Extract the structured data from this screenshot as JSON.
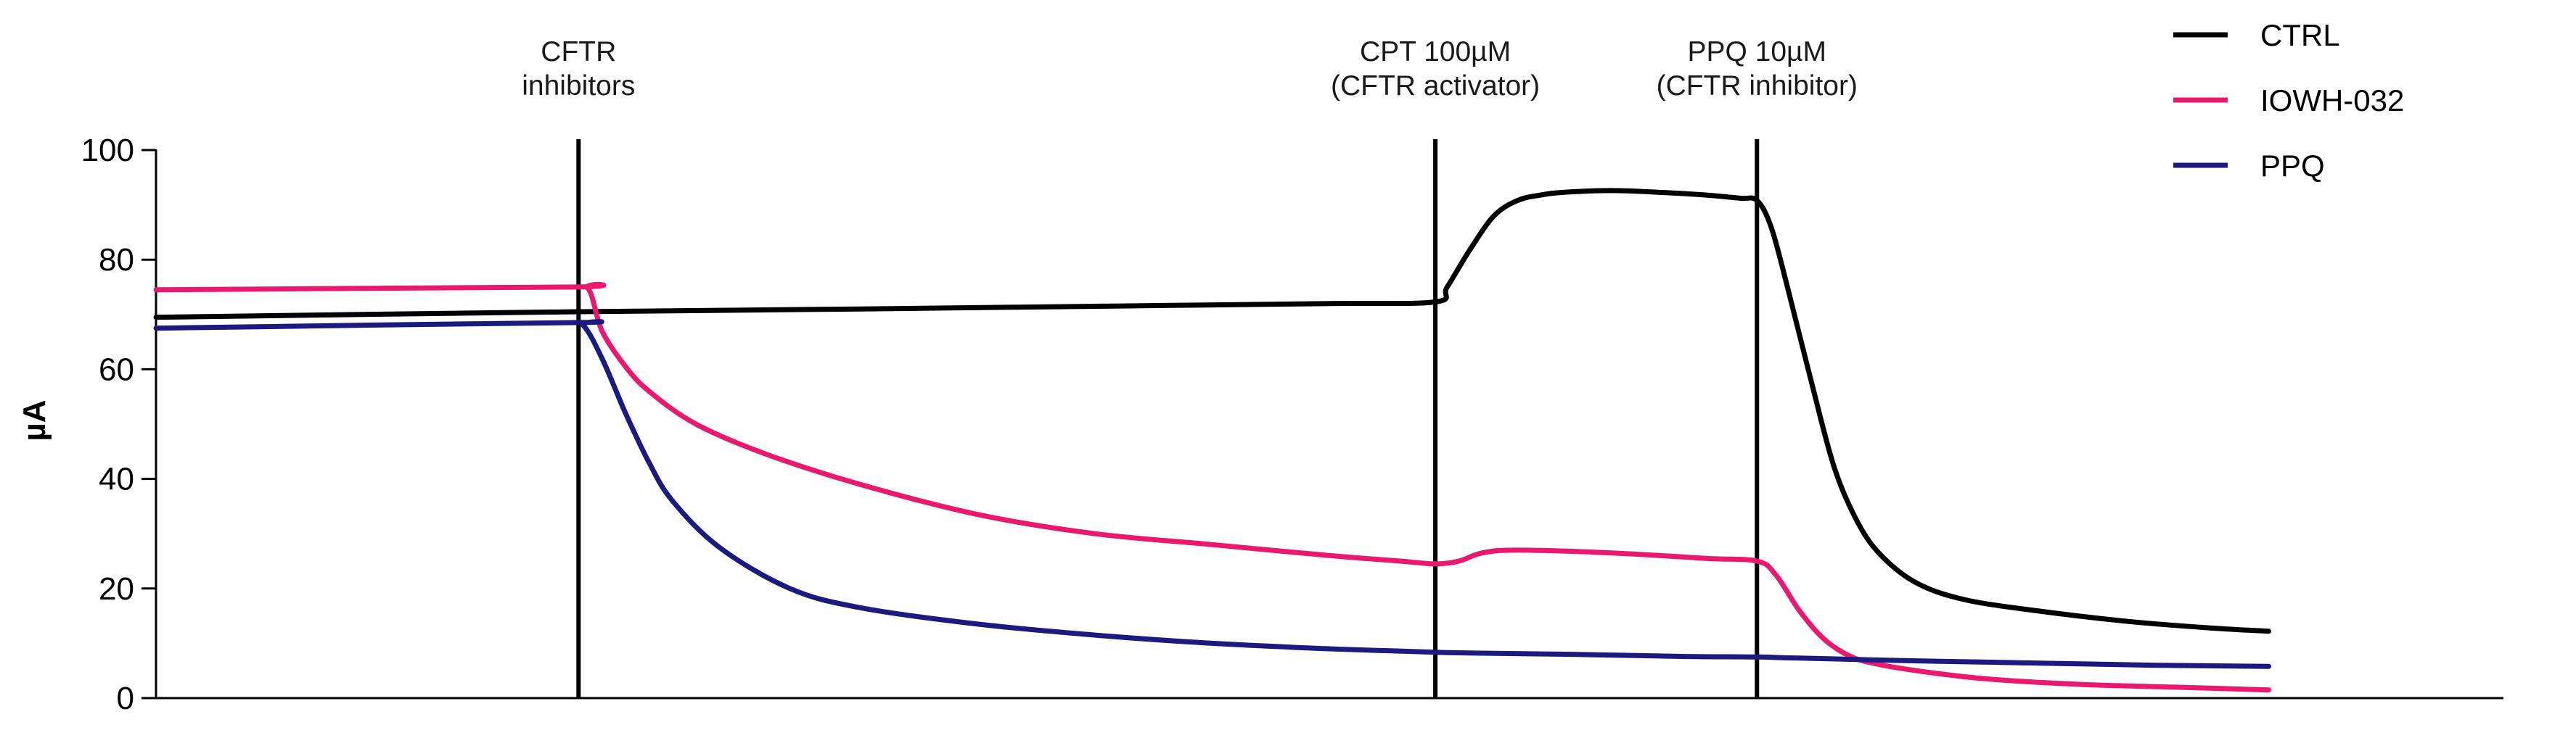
{
  "chart_data": {
    "type": "line",
    "title": "",
    "xlabel": "",
    "ylabel": "µA",
    "ylim": [
      0,
      100
    ],
    "yticks": [
      0,
      20,
      40,
      60,
      80,
      100
    ],
    "xlim": [
      0,
      100
    ],
    "grid": false,
    "legend_position": "top-right",
    "events": [
      {
        "x": 18.0,
        "label_lines": [
          "CFTR",
          "inhibitors"
        ]
      },
      {
        "x": 54.5,
        "label_lines": [
          "CPT 100µM",
          "(CFTR activator)"
        ]
      },
      {
        "x": 68.2,
        "label_lines": [
          "PPQ 10µM",
          "(CFTR inhibitor)"
        ]
      }
    ],
    "series": [
      {
        "name": "CTRL",
        "color": "#000000",
        "x": [
          0,
          18,
          30,
          40,
          50,
          54.5,
          55,
          56,
          57,
          58,
          59,
          60,
          62,
          64,
          66,
          67.5,
          68.2,
          68.8,
          69.5,
          70.5,
          71.5,
          72.5,
          73.5,
          75,
          77,
          80,
          84,
          87.5,
          90
        ],
        "y": [
          69.5,
          70.5,
          71.0,
          71.5,
          72.0,
          72.3,
          75.0,
          82.0,
          88.0,
          90.8,
          91.8,
          92.3,
          92.6,
          92.3,
          91.8,
          91.2,
          90.8,
          86.0,
          75.0,
          58.0,
          42.0,
          32.0,
          26.0,
          21.0,
          18.0,
          16.0,
          14.0,
          12.8,
          12.2
        ]
      },
      {
        "name": "IOWH-032",
        "color": "#e8196e",
        "x": [
          0,
          17.5,
          18.4,
          19,
          20,
          21,
          23,
          26,
          30,
          35,
          40,
          45,
          50,
          53,
          54.5,
          55.5,
          56.5,
          58,
          62,
          66,
          68.2,
          69,
          70,
          71,
          72,
          73,
          75,
          78,
          82,
          86,
          90
        ],
        "y": [
          74.5,
          75.0,
          74.8,
          67.0,
          60.5,
          56.0,
          50.0,
          44.5,
          39.0,
          33.5,
          30.0,
          28.0,
          26.0,
          25.0,
          24.5,
          25.0,
          26.5,
          27.0,
          26.5,
          25.5,
          25.0,
          22.5,
          16.0,
          11.0,
          8.0,
          6.5,
          5.0,
          3.5,
          2.5,
          2.0,
          1.5
        ]
      },
      {
        "name": "PPQ",
        "color": "#1a1a80",
        "x": [
          0,
          17.5,
          18.2,
          19,
          20,
          21,
          22,
          24,
          27,
          30,
          35,
          40,
          45,
          50,
          55,
          60,
          65,
          68.2,
          70,
          75,
          80,
          85,
          90
        ],
        "y": [
          67.5,
          68.5,
          68.0,
          62.0,
          52.0,
          43.0,
          36.0,
          27.5,
          20.0,
          16.5,
          13.5,
          11.5,
          10.0,
          9.0,
          8.3,
          8.0,
          7.6,
          7.5,
          7.3,
          6.8,
          6.4,
          6.0,
          5.8
        ]
      }
    ]
  }
}
